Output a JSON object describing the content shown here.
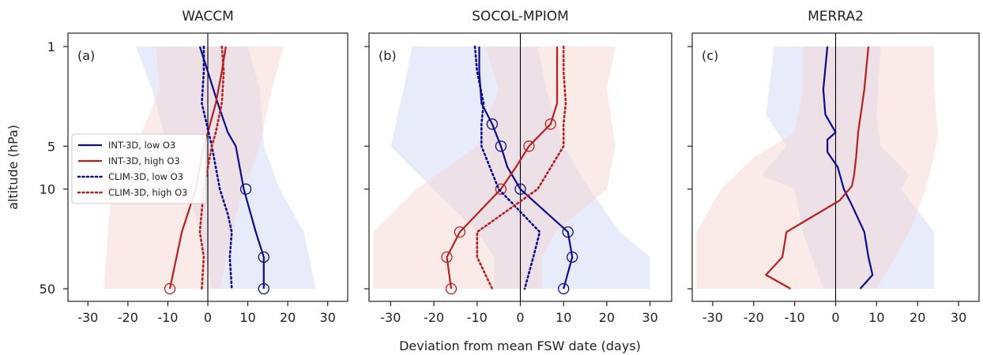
{
  "figure": {
    "ylabel": "altitude (hPa)",
    "xlabel": "Deviation from mean FSW date (days)"
  },
  "colors": {
    "blue": "#0b0b8f",
    "red": "#b8201f",
    "blue_shade": "#c9d2f5",
    "red_shade": "#f5d2cf"
  },
  "chart_data": [
    {
      "type": "line",
      "title": "WACCM",
      "panel_label": "(a)",
      "xlim": [
        -35,
        35
      ],
      "xticks": [
        -30,
        -20,
        -10,
        0,
        10,
        20,
        30
      ],
      "yticks": [
        1,
        5,
        10,
        50
      ],
      "ylim_hpa": [
        1,
        50
      ],
      "log_y": true,
      "legend": {
        "placement": "center-left",
        "entries": [
          "INT-3D, low O3",
          "INT-3D, high O3",
          "CLIM-3D, low O3",
          "CLIM-3D, high O3"
        ]
      },
      "series": [
        {
          "name": "INT-3D, low O3",
          "color": "blue",
          "style": "solid",
          "y": [
            1,
            1.5,
            2.5,
            4,
            5,
            10,
            20,
            30,
            50
          ],
          "x": [
            -2,
            0,
            2.5,
            5,
            7,
            9,
            12,
            14,
            14
          ],
          "markers": [
            {
              "y": 10,
              "x": 9.5
            },
            {
              "y": 30,
              "x": 14
            },
            {
              "y": 50,
              "x": 14
            }
          ]
        },
        {
          "name": "INT-3D, high O3",
          "color": "red",
          "style": "solid",
          "y": [
            1,
            1.5,
            2.5,
            4,
            5,
            10,
            20,
            50
          ],
          "x": [
            4.5,
            3.5,
            2,
            0,
            -1,
            -3,
            -6.5,
            -9.5
          ],
          "markers": [
            {
              "y": 50,
              "x": -9.5
            }
          ]
        },
        {
          "name": "CLIM-3D, low O3",
          "color": "blue",
          "style": "dotted",
          "y": [
            1,
            1.5,
            2.5,
            5,
            10,
            15,
            20,
            30,
            50
          ],
          "x": [
            -1,
            -1,
            -1.5,
            1,
            3,
            5,
            6,
            5.5,
            6
          ],
          "markers": []
        },
        {
          "name": "CLIM-3D, high O3",
          "color": "red",
          "style": "dotted",
          "y": [
            1,
            1.5,
            2.5,
            4,
            5,
            10,
            20,
            30,
            50
          ],
          "x": [
            3.5,
            4,
            3.5,
            2,
            1,
            -1,
            -2,
            -1,
            -1.5
          ],
          "markers": []
        }
      ],
      "shading": [
        {
          "color": "blue_shade",
          "y": [
            1,
            2,
            5,
            10,
            20,
            50
          ],
          "left": [
            -18,
            -14,
            -10,
            -5,
            -2,
            1
          ],
          "right": [
            10,
            13,
            14,
            18,
            24,
            27
          ]
        },
        {
          "color": "red_shade",
          "y": [
            1,
            2,
            5,
            10,
            20,
            50
          ],
          "left": [
            -13,
            -12,
            -18,
            -24,
            -25,
            -26
          ],
          "right": [
            19,
            16,
            13,
            9,
            6,
            3
          ]
        }
      ]
    },
    {
      "type": "line",
      "title": "SOCOL-MPIOM",
      "panel_label": "(b)",
      "xlim": [
        -35,
        35
      ],
      "xticks": [
        -30,
        -20,
        -10,
        0,
        10,
        20,
        30
      ],
      "yticks": [
        1,
        5,
        10,
        50
      ],
      "ylim_hpa": [
        1,
        50
      ],
      "log_y": true,
      "series": [
        {
          "name": "INT-3D, low O3",
          "color": "blue",
          "style": "solid",
          "y": [
            1,
            1.5,
            2.5,
            3.5,
            5,
            7,
            10,
            20,
            30,
            50
          ],
          "x": [
            -9.5,
            -9.5,
            -9,
            -6.5,
            -4.5,
            -3,
            0,
            11,
            12,
            10
          ],
          "markers": [
            {
              "y": 3.5,
              "x": -6.5
            },
            {
              "y": 5,
              "x": -4.5
            },
            {
              "y": 10,
              "x": 0
            },
            {
              "y": 20,
              "x": 11
            },
            {
              "y": 30,
              "x": 12
            },
            {
              "y": 50,
              "x": 10
            }
          ]
        },
        {
          "name": "INT-3D, high O3",
          "color": "red",
          "style": "solid",
          "y": [
            1,
            1.5,
            2.5,
            3.5,
            5,
            7,
            10,
            20,
            30,
            50
          ],
          "x": [
            8.5,
            8.5,
            8.5,
            7,
            2,
            -1,
            -4.5,
            -14,
            -17,
            -16
          ],
          "markers": [
            {
              "y": 3.5,
              "x": 7
            },
            {
              "y": 5,
              "x": 2
            },
            {
              "y": 10,
              "x": -4.5
            },
            {
              "y": 20,
              "x": -14
            },
            {
              "y": 30,
              "x": -17
            },
            {
              "y": 50,
              "x": -16
            }
          ]
        },
        {
          "name": "CLIM-3D, low O3",
          "color": "blue",
          "style": "dotted",
          "y": [
            1,
            1.5,
            2.5,
            3.5,
            5,
            10,
            20,
            30,
            50
          ],
          "x": [
            -10.5,
            -10,
            -8.5,
            -9,
            -9,
            -5,
            4.5,
            3,
            1
          ],
          "markers": []
        },
        {
          "name": "CLIM-3D, high O3",
          "color": "red",
          "style": "dotted",
          "y": [
            1,
            1.5,
            2.5,
            3.5,
            5,
            10,
            20,
            30,
            50
          ],
          "x": [
            10,
            10,
            10.5,
            10,
            10,
            4,
            -10,
            -10,
            -6.5
          ],
          "markers": []
        }
      ],
      "shading": [
        {
          "color": "blue_shade",
          "y": [
            1,
            2,
            5,
            10,
            20,
            30,
            50
          ],
          "left": [
            -25,
            -27,
            -30,
            -20,
            -10,
            -6,
            -6
          ],
          "right": [
            4,
            6,
            10,
            16,
            23,
            30,
            30
          ]
        },
        {
          "color": "red_shade",
          "y": [
            1,
            2,
            5,
            10,
            20,
            30,
            50
          ],
          "left": [
            -8,
            -5,
            -10,
            -24,
            -34,
            -34,
            -34
          ],
          "right": [
            22,
            20,
            22,
            20,
            8,
            5,
            5
          ]
        }
      ]
    },
    {
      "type": "line",
      "title": "MERRA2",
      "panel_label": "(c)",
      "xlim": [
        -35,
        35
      ],
      "xticks": [
        -30,
        -20,
        -10,
        0,
        10,
        20,
        30
      ],
      "yticks": [
        1,
        5,
        10,
        50
      ],
      "ylim_hpa": [
        1,
        50
      ],
      "log_y": true,
      "series": [
        {
          "name": "INT-3D, low O3",
          "color": "blue",
          "style": "solid",
          "y": [
            1,
            2,
            3,
            4,
            4.5,
            5.5,
            7,
            10,
            13,
            20,
            30,
            40,
            50
          ],
          "x": [
            -2,
            -3,
            -2.5,
            0,
            -2,
            -2,
            0.5,
            2,
            4,
            7,
            8,
            9,
            6
          ],
          "markers": []
        },
        {
          "name": "INT-3D, high O3",
          "color": "red",
          "style": "solid",
          "y": [
            1,
            2,
            4,
            6,
            8,
            9.5,
            12,
            20,
            30,
            40,
            50
          ],
          "x": [
            8,
            7,
            5.5,
            5,
            4.5,
            4,
            1,
            -12,
            -13,
            -17,
            -11
          ],
          "markers": []
        }
      ],
      "shading": [
        {
          "color": "blue_shade",
          "y": [
            1,
            3,
            5,
            8,
            10,
            20,
            50
          ],
          "left": [
            -15,
            -17,
            -12,
            -18,
            -10,
            -8,
            -3
          ],
          "right": [
            11,
            10,
            11,
            18,
            16,
            24,
            24
          ]
        },
        {
          "color": "red_shade",
          "y": [
            1,
            2,
            4,
            6,
            10,
            20,
            50
          ],
          "left": [
            -8,
            -8,
            -10,
            -20,
            -28,
            -34,
            -34
          ],
          "right": [
            24,
            24,
            25,
            24,
            22,
            18,
            10
          ]
        }
      ]
    }
  ]
}
